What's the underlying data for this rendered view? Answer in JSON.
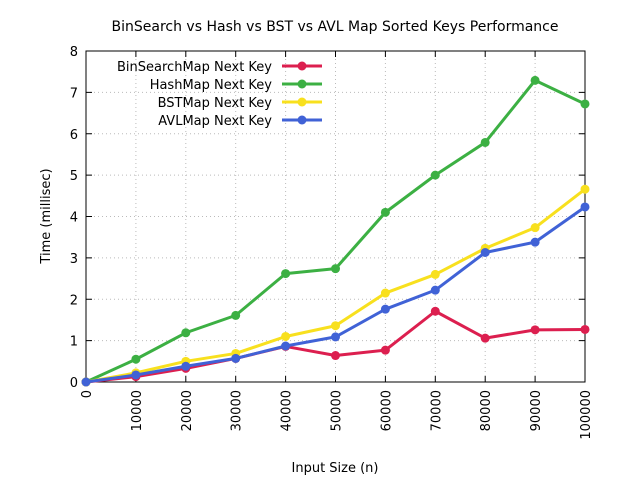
{
  "chart_data": {
    "type": "line",
    "title": "BinSearch vs Hash vs BST vs AVL Map Sorted Keys Performance",
    "xlabel": "Input Size (n)",
    "ylabel": "Time (millisec)",
    "xlim": [
      0,
      100000
    ],
    "ylim": [
      0,
      8
    ],
    "x_ticks": [
      "0",
      "10000",
      "20000",
      "30000",
      "40000",
      "50000",
      "60000",
      "70000",
      "80000",
      "90000",
      "100000"
    ],
    "y_ticks": [
      "0",
      "1",
      "2",
      "3",
      "4",
      "5",
      "6",
      "7",
      "8"
    ],
    "grid": true,
    "legend_position": "top-left",
    "x": [
      0,
      10000,
      20000,
      30000,
      40000,
      50000,
      60000,
      70000,
      80000,
      90000,
      100000
    ],
    "series": [
      {
        "name": "BinSearchMap Next Key",
        "color": "#dc1f4f",
        "values": [
          0.0,
          0.13,
          0.33,
          0.57,
          0.86,
          0.64,
          0.77,
          1.71,
          1.06,
          1.26,
          1.27
        ]
      },
      {
        "name": "HashMap Next Key",
        "color": "#3cb043",
        "values": [
          0.0,
          0.55,
          1.19,
          1.61,
          2.62,
          2.74,
          4.1,
          5.0,
          5.79,
          7.29,
          6.72
        ]
      },
      {
        "name": "BSTMap Next Key",
        "color": "#f8e01e",
        "values": [
          0.0,
          0.22,
          0.5,
          0.69,
          1.1,
          1.36,
          2.15,
          2.6,
          3.23,
          3.73,
          4.66
        ]
      },
      {
        "name": "AVLMap Next Key",
        "color": "#4062d6",
        "values": [
          0.0,
          0.17,
          0.38,
          0.57,
          0.87,
          1.09,
          1.76,
          2.22,
          3.13,
          3.38,
          4.23
        ]
      }
    ]
  }
}
